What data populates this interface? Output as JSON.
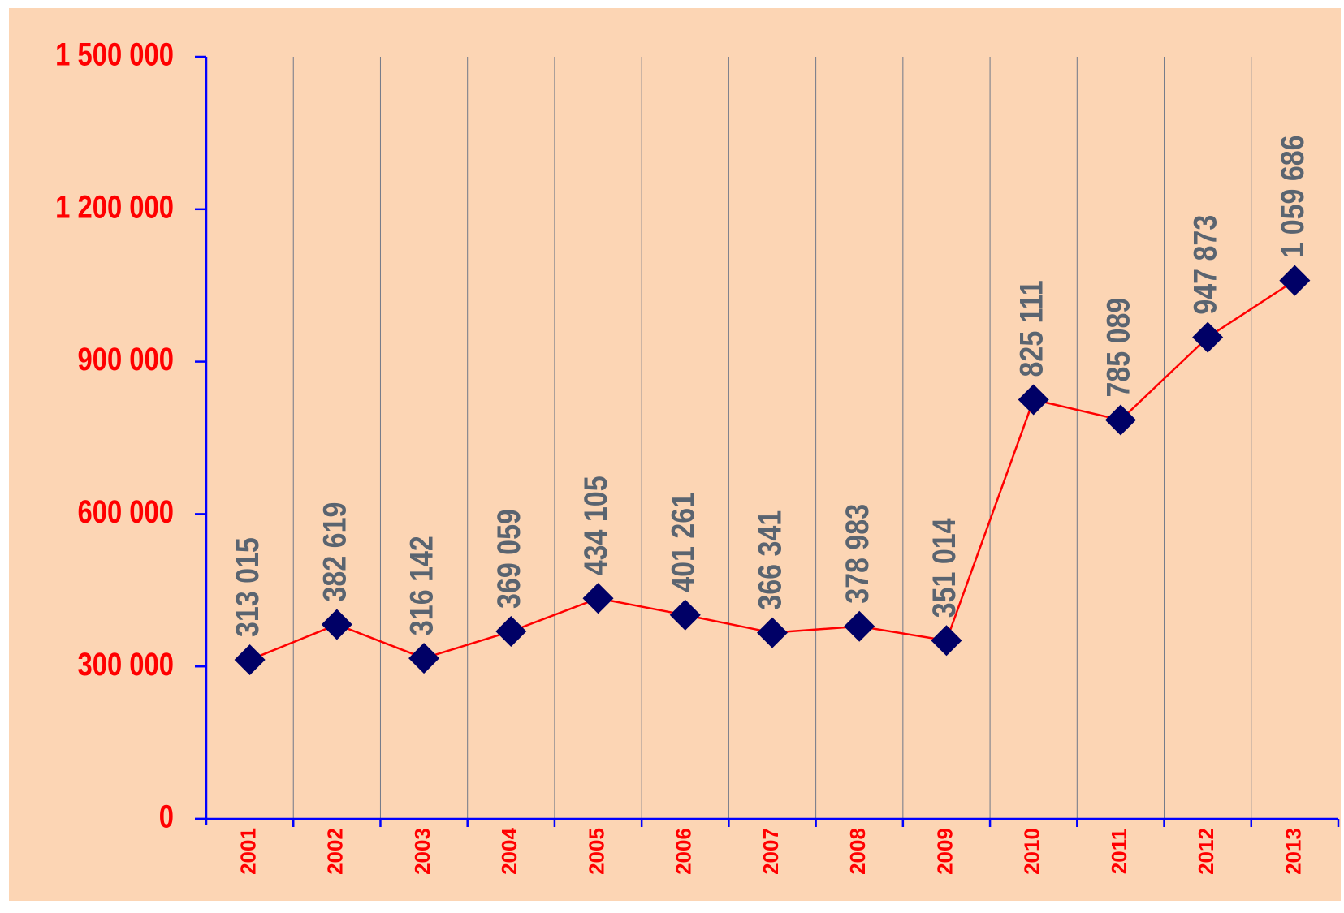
{
  "chart_data": {
    "type": "line",
    "categories": [
      "2001",
      "2002",
      "2003",
      "2004",
      "2005",
      "2006",
      "2007",
      "2008",
      "2009",
      "2010",
      "2011",
      "2012",
      "2013"
    ],
    "series": [
      {
        "color": "#ff0000",
        "marker_color": "#000066",
        "values": [
          313015,
          382619,
          316142,
          369059,
          434105,
          401261,
          366341,
          378983,
          351014,
          825111,
          785089,
          947873,
          1059686
        ],
        "value_labels": [
          "313 015",
          "382 619",
          "316 142",
          "369 059",
          "434 105",
          "401 261",
          "366 341",
          "378 983",
          "351 014",
          "825 111",
          "785 089",
          "947 873",
          "1 059 686"
        ]
      }
    ],
    "ylim": [
      0,
      1500000
    ],
    "yticks": [
      0,
      {
        "value": 300000,
        "label": "300 000"
      },
      {
        "value": 600000,
        "label": "600 000"
      },
      {
        "value": 900000,
        "label": "900 000"
      },
      {
        "value": 1200000,
        "label": "1 200 000"
      },
      {
        "value": 1500000,
        "label": "1 500 000"
      }
    ],
    "grid": true
  }
}
